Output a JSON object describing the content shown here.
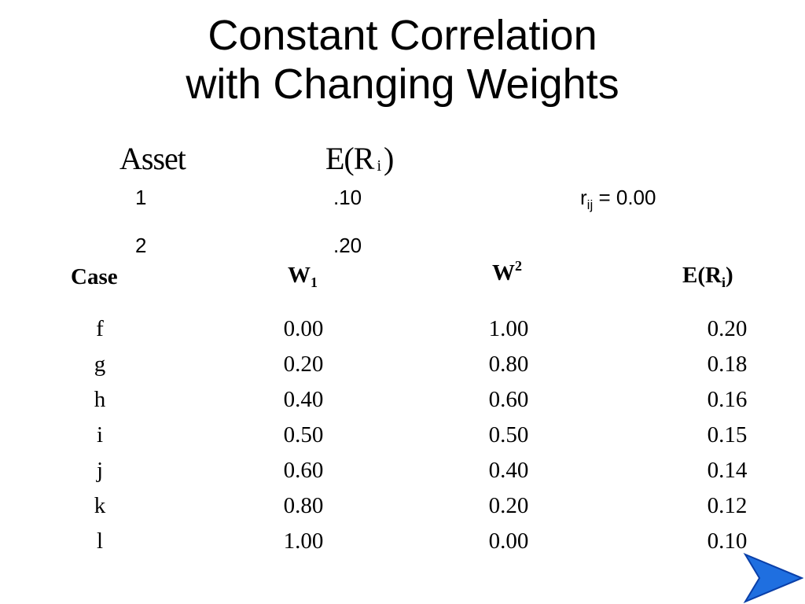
{
  "title": {
    "line1": "Constant Correlation",
    "line2": "with Changing Weights"
  },
  "asset_table": {
    "header_asset": "Asset",
    "header_er_prefix": "E(R",
    "header_er_sub": "i",
    "header_er_suffix": ")",
    "rows": [
      {
        "asset": "1",
        "er": ".10"
      },
      {
        "asset": "2",
        "er": ".20"
      }
    ],
    "correlation": {
      "symbol": "r",
      "sub": "ij",
      "value": " = 0.00"
    }
  },
  "case_table": {
    "headers": {
      "case": "Case",
      "w1_base": "W",
      "w1_sub": "1",
      "w2_base": "W",
      "w2_sup": "2",
      "er_base": "E(R",
      "er_sub": "i",
      "er_suffix": ")"
    },
    "rows": [
      {
        "case": "f",
        "w1": "0.00",
        "w2": "1.00",
        "er": "0.20"
      },
      {
        "case": "g",
        "w1": "0.20",
        "w2": "0.80",
        "er": "0.18"
      },
      {
        "case": "h",
        "w1": "0.40",
        "w2": "0.60",
        "er": "0.16"
      },
      {
        "case": "i",
        "w1": "0.50",
        "w2": "0.50",
        "er": "0.15"
      },
      {
        "case": "j",
        "w1": "0.60",
        "w2": "0.40",
        "er": "0.14"
      },
      {
        "case": "k",
        "w1": "0.80",
        "w2": "0.20",
        "er": "0.12"
      },
      {
        "case": "l",
        "w1": "1.00",
        "w2": "0.00",
        "er": "0.10"
      }
    ]
  },
  "navigation": {
    "next_icon": "next-arrow-icon",
    "arrow_color": "#1f6fe0",
    "arrow_dark": "#0a3fa8"
  }
}
